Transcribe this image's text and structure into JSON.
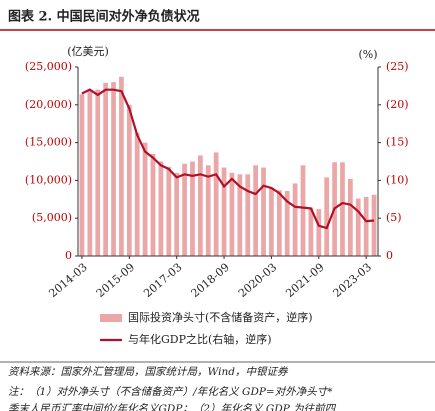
{
  "chart_data": {
    "type": "bar_line",
    "title": "图表 2. 中国民间对外净负债状况",
    "y_label": "(亿美元)",
    "y2_label": "(%)",
    "categories": [
      "2014-03",
      null,
      null,
      null,
      null,
      null,
      "2015-09",
      null,
      null,
      null,
      null,
      null,
      "2017-03",
      null,
      null,
      null,
      null,
      null,
      "2018-09",
      null,
      null,
      null,
      null,
      null,
      "2020-03",
      null,
      null,
      null,
      null,
      null,
      "2021-09",
      null,
      null,
      null,
      null,
      null,
      "2023-03",
      null
    ],
    "series": [
      {
        "name": "国际投资净头寸(不含储备资产，逆序)",
        "type": "bar",
        "color": "#eba7a7",
        "values": [
          -21400,
          -21800,
          -22000,
          -22900,
          -23000,
          -23700,
          -20000,
          -16300,
          -15000,
          -13500,
          -12500,
          -11800,
          -11000,
          -12200,
          -12500,
          -13300,
          -12000,
          -13700,
          -11700,
          -11000,
          -10800,
          -10800,
          -12000,
          -11700,
          -9000,
          -8700,
          -8600,
          -9600,
          -12000,
          -6400,
          -6200,
          -10400,
          -12400,
          -12400,
          -10200,
          -7600,
          -7800,
          -8100
        ]
      },
      {
        "name": "与年化GDP之比(右轴，逆序)",
        "type": "line",
        "axis": "y2",
        "color": "#b0102a",
        "values": [
          -21.5,
          -22,
          -21.3,
          -22,
          -22,
          -21.8,
          -19.5,
          -16,
          -13.8,
          -13,
          -12,
          -11.5,
          -10.4,
          -10.8,
          -10.6,
          -10.8,
          -10.5,
          -10.8,
          -9.2,
          -10.2,
          -9.2,
          -8.6,
          -8.2,
          -9.3,
          -9,
          -8.3,
          -7.2,
          -6.5,
          -6.4,
          -6.3,
          -4.0,
          -3.7,
          -6.3,
          -7.0,
          -6.8,
          -5.9,
          -4.6,
          -4.7
        ]
      }
    ],
    "ylim": [
      0,
      -25000
    ],
    "yticks": [
      0,
      {
        "value": -5000,
        "label": "(5,000)"
      },
      {
        "value": -10000,
        "label": "(10,000)"
      },
      {
        "value": -15000,
        "label": "(15,000)"
      },
      {
        "value": -20000,
        "label": "(20,000)"
      },
      {
        "value": -25000,
        "label": "(25,000)"
      }
    ],
    "y2lim": [
      0,
      -25
    ],
    "y2ticks": [
      0,
      {
        "value": -5,
        "label": "(5)"
      },
      {
        "value": -10,
        "label": "(10)"
      },
      {
        "value": -15,
        "label": "(15)"
      },
      {
        "value": -20,
        "label": "(20)"
      },
      {
        "value": -25,
        "label": "(25)"
      }
    ],
    "source": "资料来源：国家外汇管理局，国家统计局，Wind，中银证券",
    "notes": [
      "注：（1）对外净头寸（不含储备资产）/年化名义 GDP=对外净头寸*",
      "季末人民币汇率中间价/年化名义GDP；（2）年化名义 GDP 为往前四"
    ]
  }
}
